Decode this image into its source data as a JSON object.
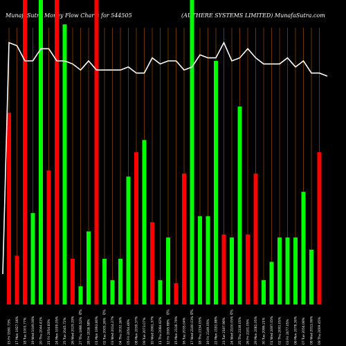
{
  "chart_data": {
    "type": "bar",
    "title_left": "MunafaSutra Money Flow Charts for 544505",
    "title_right": "(AUTHERE SYSTEMS LIMITED) MunafaSutra.com",
    "colors": {
      "up": "#00ff00",
      "down": "#ff0000",
      "line": "#ffffff",
      "grid": "#b05a00",
      "bg": "#000000"
    },
    "ylim": [
      0,
      100
    ],
    "bars": [
      {
        "label": "15 Fri 1590.73%",
        "dir": "down",
        "value": 63
      },
      {
        "label": "17 Mon 1927.16%",
        "dir": "down",
        "value": 16
      },
      {
        "label": "18 Tue 1001.77%",
        "dir": "down",
        "value": 100
      },
      {
        "label": "19 Wed 1049.08%",
        "dir": "up",
        "value": 30
      },
      {
        "label": "20 Thu 2044.41%",
        "dir": "up",
        "value": 100
      },
      {
        "label": "21 Fri 2054.83%",
        "dir": "down",
        "value": 44
      },
      {
        "label": "24 Mon 1009.05%",
        "dir": "down",
        "value": 100
      },
      {
        "label": "25 Tue 2045.72%",
        "dir": "up",
        "value": 92
      },
      {
        "label": "26 Wed 2029.29%",
        "dir": "down",
        "value": 15
      },
      {
        "label": "27 Thu 1986.52%",
        "dir": "up",
        "value": 6
      },
      {
        "label": "28 Fri 2016.98%",
        "dir": "up",
        "value": 24
      },
      {
        "label": "01 Mon 1993.80%",
        "dir": "down",
        "value": 100
      },
      {
        "label": "02 Tue 2005.26%",
        "dir": "up",
        "value": 15
      },
      {
        "label": "03 Wed 2014.27%",
        "dir": "up",
        "value": 8
      },
      {
        "label": "04 Thu 2032.16%",
        "dir": "up",
        "value": 15
      },
      {
        "label": "05 Fri 2054.46%",
        "dir": "up",
        "value": 42
      },
      {
        "label": "08 Mon 2039.37%",
        "dir": "down",
        "value": 50
      },
      {
        "label": "09 Tue 2073.07%",
        "dir": "up",
        "value": 54
      },
      {
        "label": "10 Wed 2061.37%",
        "dir": "down",
        "value": 27
      },
      {
        "label": "11 Thu 2084.92%",
        "dir": "up",
        "value": 8
      },
      {
        "label": "12 Fri 2095.88%",
        "dir": "up",
        "value": 22
      },
      {
        "label": "15 Mon 2116.79%",
        "dir": "down",
        "value": 7
      },
      {
        "label": "16 Tue 2035.04%",
        "dir": "down",
        "value": 43
      },
      {
        "label": "17 Wed 2180.03%",
        "dir": "up",
        "value": 100
      },
      {
        "label": "18 Thu 2134.05%",
        "dir": "up",
        "value": 29
      },
      {
        "label": "19 Fri 2149.05%",
        "dir": "up",
        "value": 29
      },
      {
        "label": "22 Mon 2191.88%",
        "dir": "up",
        "value": 80
      },
      {
        "label": "23 Tue 2187.98%",
        "dir": "down",
        "value": 23
      },
      {
        "label": "24 Wed 2100.05%",
        "dir": "up",
        "value": 22
      },
      {
        "label": "25 Thu 2138.05%",
        "dir": "up",
        "value": 65
      },
      {
        "label": "26 Fri 2101.05%",
        "dir": "down",
        "value": 23
      },
      {
        "label": "29 Mon 2081.05%",
        "dir": "down",
        "value": 43
      },
      {
        "label": "30 Tue 2086.21%",
        "dir": "up",
        "value": 8
      },
      {
        "label": "01 Wed 2087.05%",
        "dir": "up",
        "value": 14
      },
      {
        "label": "02 Thu 2091.05%",
        "dir": "up",
        "value": 22
      },
      {
        "label": "03 Fri 2077.05%",
        "dir": "up",
        "value": 22
      },
      {
        "label": "06 Mon 2078.30%",
        "dir": "up",
        "value": 22
      },
      {
        "label": "07 Tue 2054.08%",
        "dir": "up",
        "value": 37
      },
      {
        "label": "08 Wed 2011.06%",
        "dir": "up",
        "value": 18
      },
      {
        "label": "09 Thu 2009.45%",
        "dir": "down",
        "value": 50
      }
    ],
    "price_line": [
      10,
      86,
      85,
      80,
      80,
      84,
      84,
      80,
      80,
      79,
      77,
      80,
      77,
      77,
      77,
      77,
      78,
      76,
      76,
      81,
      79,
      80,
      80,
      77,
      78,
      82,
      81,
      81,
      86,
      80,
      81,
      84,
      81,
      79,
      79,
      79,
      81,
      78,
      80,
      76,
      76,
      75
    ],
    "x_markers": [
      "0%",
      "0%",
      "0%",
      "0%",
      "0%"
    ]
  }
}
